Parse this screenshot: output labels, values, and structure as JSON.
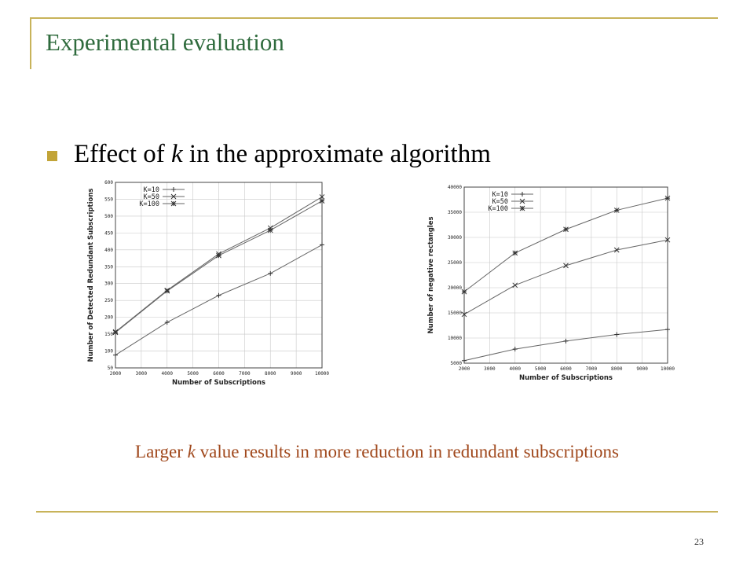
{
  "slide": {
    "title": "Experimental evaluation",
    "bullet_prefix": "Effect of ",
    "bullet_var": "k",
    "bullet_suffix": " in the approximate algorithm",
    "caption_prefix": "Larger ",
    "caption_var": "k",
    "caption_suffix": " value results in more reduction in redundant subscriptions",
    "page_number": "23",
    "accent_color": "#c8b35a",
    "title_color": "#2f6b3d",
    "caption_color": "#a0481c"
  },
  "chart_data": [
    {
      "type": "line",
      "xlabel": "Number of Subscriptions",
      "ylabel": "Number of Detected Redundant Subscriptions",
      "x_ticks": [
        2000,
        3000,
        4000,
        5000,
        6000,
        7000,
        8000,
        9000,
        10000
      ],
      "y_ticks": [
        50,
        100,
        150,
        200,
        250,
        300,
        350,
        400,
        450,
        500,
        550,
        600
      ],
      "xlim": [
        2000,
        10000
      ],
      "ylim": [
        50,
        600
      ],
      "grid": true,
      "legend_position": "top-left",
      "x": [
        2000,
        4000,
        6000,
        8000,
        10000
      ],
      "series": [
        {
          "name": "K=10",
          "marker": "plus",
          "values": [
            88,
            185,
            265,
            330,
            415
          ]
        },
        {
          "name": "K=50",
          "marker": "x",
          "values": [
            157,
            280,
            388,
            465,
            557
          ]
        },
        {
          "name": "K=100",
          "marker": "star",
          "values": [
            155,
            278,
            383,
            458,
            545
          ]
        }
      ]
    },
    {
      "type": "line",
      "xlabel": "Number of Subscriptions",
      "ylabel": "Number of negative rectangles",
      "x_ticks": [
        2000,
        3000,
        4000,
        5000,
        6000,
        7000,
        8000,
        9000,
        10000
      ],
      "y_ticks": [
        5000,
        10000,
        15000,
        20000,
        25000,
        30000,
        35000,
        40000
      ],
      "xlim": [
        2000,
        10000
      ],
      "ylim": [
        5000,
        40000
      ],
      "grid": true,
      "legend_position": "top-left",
      "x": [
        2000,
        4000,
        6000,
        8000,
        10000
      ],
      "series": [
        {
          "name": "K=10",
          "marker": "plus",
          "values": [
            5500,
            7800,
            9400,
            10700,
            11700
          ]
        },
        {
          "name": "K=50",
          "marker": "x",
          "values": [
            14700,
            20500,
            24400,
            27500,
            29500
          ]
        },
        {
          "name": "K=100",
          "marker": "star",
          "values": [
            19200,
            26900,
            31600,
            35400,
            37800
          ]
        }
      ]
    }
  ]
}
